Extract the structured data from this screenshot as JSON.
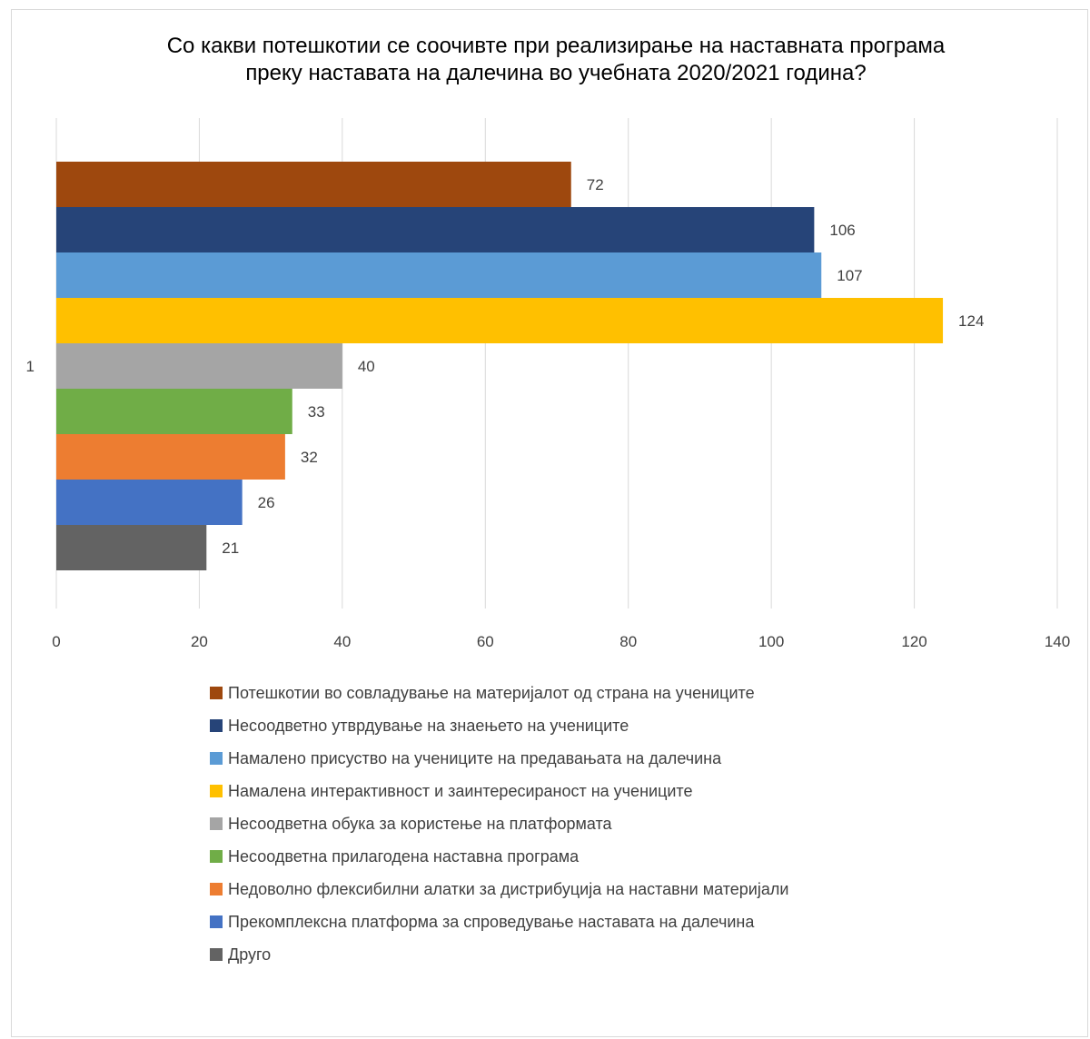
{
  "chart_data": {
    "type": "bar",
    "orientation": "horizontal",
    "title": "Со какви потешкотии се соочивте при реализирање на наставната програма\nпреку наставата на далечина во учебната 2020/2021 година?",
    "categories": [
      "1"
    ],
    "xlim": [
      0,
      140
    ],
    "x_ticks": [
      0,
      20,
      40,
      60,
      80,
      100,
      120,
      140
    ],
    "grid": true,
    "legend_position": "bottom",
    "series": [
      {
        "name": "Потешкотии во совладување на материјалот од страна на учениците",
        "values": [
          72
        ],
        "color": "#9E480E"
      },
      {
        "name": "Несоодветно утврдување на знаењето на учениците",
        "values": [
          106
        ],
        "color": "#264478"
      },
      {
        "name": "Намалено присуство на учениците на предавањата на далечина",
        "values": [
          107
        ],
        "color": "#5B9BD5"
      },
      {
        "name": "Намалена интерактивност и заинтересираност на учениците",
        "values": [
          124
        ],
        "color": "#FFC000"
      },
      {
        "name": "Несоодветна обука за користење на платформата",
        "values": [
          40
        ],
        "color": "#A5A5A5"
      },
      {
        "name": "Несоодветна прилагодена наставна програма",
        "values": [
          33
        ],
        "color": "#70AD47"
      },
      {
        "name": "Недоволно флексибилни алатки за дистрибуција на наставни материјали",
        "values": [
          32
        ],
        "color": "#ED7D31"
      },
      {
        "name": "Прекомплексна платформа за спроведување наставата на далечина",
        "values": [
          26
        ],
        "color": "#4472C4"
      },
      {
        "name": "Друго",
        "values": [
          21
        ],
        "color": "#636363"
      }
    ]
  }
}
